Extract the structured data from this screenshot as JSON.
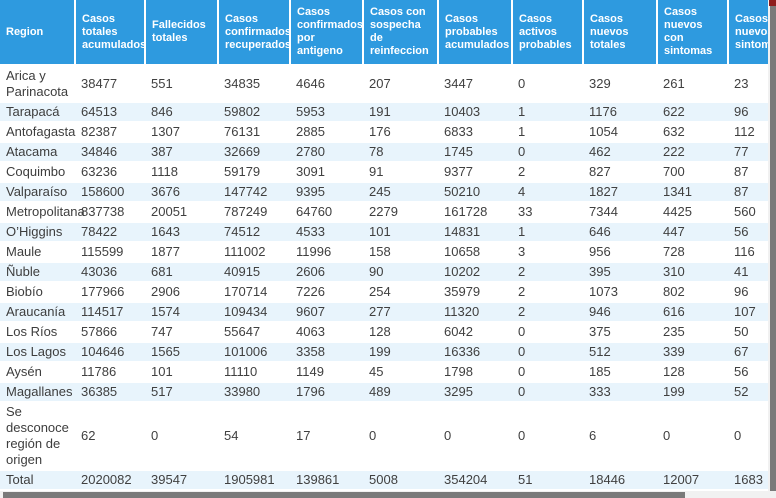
{
  "colors": {
    "header_bg": "#2E9ADF",
    "header_text": "#FFFFFF",
    "stripe_bg": "#E8F4FC",
    "body_text": "#404040",
    "scrollbar_thumb": "#7A7A7A",
    "scrollbar_track": "#F1F1F1",
    "corner_marker": "#8E1D1D"
  },
  "table": {
    "columns": [
      "Region",
      "Casos totales acumulados",
      "Fallecidos totales",
      "Casos confirmados recuperados",
      "Casos confirmados por antigeno",
      "Casos con sospecha de reinfeccion",
      "Casos probables acumulados",
      "Casos activos probables",
      "Casos nuevos totales",
      "Casos nuevos con sintomas",
      "Casos nuevos sin sintomas"
    ],
    "rows": [
      {
        "region": "Arica y Parinacota",
        "values": [
          "38477",
          "551",
          "34835",
          "4646",
          "207",
          "3447",
          "0",
          "329",
          "261",
          "23"
        ]
      },
      {
        "region": "Tarapacá",
        "values": [
          "64513",
          "846",
          "59802",
          "5953",
          "191",
          "10403",
          "1",
          "1176",
          "622",
          "96"
        ]
      },
      {
        "region": "Antofagasta",
        "values": [
          "82387",
          "1307",
          "76131",
          "2885",
          "176",
          "6833",
          "1",
          "1054",
          "632",
          "112"
        ]
      },
      {
        "region": "Atacama",
        "values": [
          "34846",
          "387",
          "32669",
          "2780",
          "78",
          "1745",
          "0",
          "462",
          "222",
          "77"
        ]
      },
      {
        "region": "Coquimbo",
        "values": [
          "63236",
          "1118",
          "59179",
          "3091",
          "91",
          "9377",
          "2",
          "827",
          "700",
          "87"
        ]
      },
      {
        "region": "Valparaíso",
        "values": [
          "158600",
          "3676",
          "147742",
          "9395",
          "245",
          "50210",
          "4",
          "1827",
          "1341",
          "87"
        ]
      },
      {
        "region": "Metropolitana",
        "values": [
          "837738",
          "20051",
          "787249",
          "64760",
          "2279",
          "161728",
          "33",
          "7344",
          "4425",
          "560"
        ]
      },
      {
        "region": "O’Higgins",
        "values": [
          "78422",
          "1643",
          "74512",
          "4533",
          "101",
          "14831",
          "1",
          "646",
          "447",
          "56"
        ]
      },
      {
        "region": "Maule",
        "values": [
          "115599",
          "1877",
          "111002",
          "11996",
          "158",
          "10658",
          "3",
          "956",
          "728",
          "116"
        ]
      },
      {
        "region": "Ñuble",
        "values": [
          "43036",
          "681",
          "40915",
          "2606",
          "90",
          "10202",
          "2",
          "395",
          "310",
          "41"
        ]
      },
      {
        "region": "Biobío",
        "values": [
          "177966",
          "2906",
          "170714",
          "7226",
          "254",
          "35979",
          "2",
          "1073",
          "802",
          "96"
        ]
      },
      {
        "region": "Araucanía",
        "values": [
          "114517",
          "1574",
          "109434",
          "9607",
          "277",
          "11320",
          "2",
          "946",
          "616",
          "107"
        ]
      },
      {
        "region": "Los Ríos",
        "values": [
          "57866",
          "747",
          "55647",
          "4063",
          "128",
          "6042",
          "0",
          "375",
          "235",
          "50"
        ]
      },
      {
        "region": "Los Lagos",
        "values": [
          "104646",
          "1565",
          "101006",
          "3358",
          "199",
          "16336",
          "0",
          "512",
          "339",
          "67"
        ]
      },
      {
        "region": "Aysén",
        "values": [
          "11786",
          "101",
          "11110",
          "1149",
          "45",
          "1798",
          "0",
          "185",
          "128",
          "56"
        ]
      },
      {
        "region": "Magallanes",
        "values": [
          "36385",
          "517",
          "33980",
          "1796",
          "489",
          "3295",
          "0",
          "333",
          "199",
          "52"
        ]
      },
      {
        "region": "Se desconoce región de origen",
        "values": [
          "62",
          "0",
          "54",
          "17",
          "0",
          "0",
          "0",
          "6",
          "0",
          "0"
        ]
      },
      {
        "region": "Total",
        "values": [
          "2020082",
          "39547",
          "1905981",
          "139861",
          "5008",
          "354204",
          "51",
          "18446",
          "12007",
          "1683"
        ]
      }
    ]
  }
}
